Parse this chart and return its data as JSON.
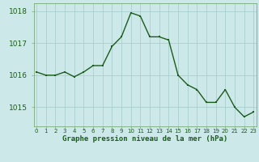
{
  "x": [
    0,
    1,
    2,
    3,
    4,
    5,
    6,
    7,
    8,
    9,
    10,
    11,
    12,
    13,
    14,
    15,
    16,
    17,
    18,
    19,
    20,
    21,
    22,
    23
  ],
  "y": [
    1016.1,
    1016.0,
    1016.0,
    1016.1,
    1015.95,
    1016.1,
    1016.3,
    1016.3,
    1016.9,
    1017.2,
    1017.95,
    1017.85,
    1017.2,
    1017.2,
    1017.1,
    1016.0,
    1015.7,
    1015.55,
    1015.15,
    1015.15,
    1015.55,
    1015.0,
    1014.7,
    1014.85
  ],
  "line_color": "#1a5c1a",
  "marker_color": "#1a5c1a",
  "bg_color": "#cde8e8",
  "grid_color_major": "#aacfcf",
  "grid_color_minor": "#c0dede",
  "xlabel": "Graphe pression niveau de la mer (hPa)",
  "xlabel_color": "#1a5c1a",
  "tick_color": "#1a5c1a",
  "ylim": [
    1014.4,
    1018.25
  ],
  "yticks": [
    1015,
    1016,
    1017,
    1018
  ],
  "xticks": [
    0,
    1,
    2,
    3,
    4,
    5,
    6,
    7,
    8,
    9,
    10,
    11,
    12,
    13,
    14,
    15,
    16,
    17,
    18,
    19,
    20,
    21,
    22,
    23
  ],
  "spine_color": "#7aaa7a"
}
